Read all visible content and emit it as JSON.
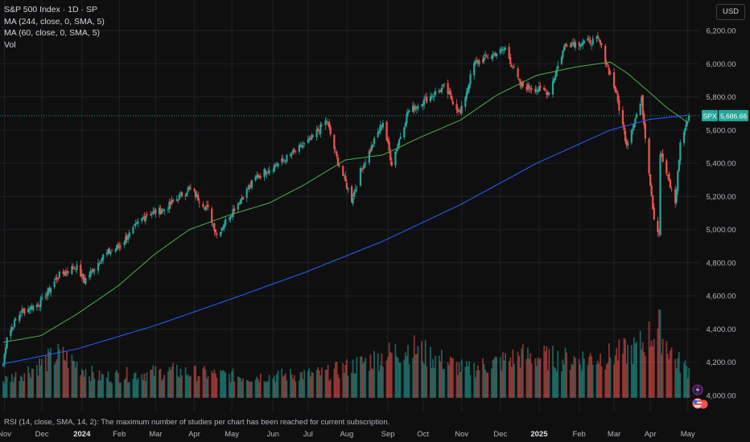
{
  "legend": {
    "title": "S&P 500 Index · 1D · SP",
    "ma244": "MA (244, close, 0, SMA, 5)",
    "ma60": "MA (60, close, 0, SMA, 5)",
    "vol": "Vol"
  },
  "currency": "USD",
  "rsi_note": "RSI (14, close, SMA, 14, 2): The maximum number of studies per chart has been reached for current subscription.",
  "price_tag": {
    "symbol": "SPX",
    "value": "5,686.66",
    "price": 5686.66
  },
  "colors": {
    "background": "#0f0f0f",
    "up": "#26a69a",
    "down": "#ef5350",
    "ma244": "#2962ff",
    "ma60": "#4caf50",
    "grid": "#1f2128",
    "tag": "#26a69a"
  },
  "chart_data": {
    "type": "candlestick",
    "symbol": "S&P 500 Index · 1D · SP",
    "y_ticks": [
      4000,
      4200,
      4400,
      4600,
      4800,
      5000,
      5200,
      5400,
      5600,
      5800,
      6000,
      6200
    ],
    "y_tick_labels": [
      "4,000.00",
      "4,200.00",
      "4,400.00",
      "4,600.00",
      "4,800.00",
      "5,000.00",
      "5,200.00",
      "5,400.00",
      "5,600.00",
      "5,800.00",
      "6,000.00",
      "6,200.00"
    ],
    "ylim": [
      3930,
      6300
    ],
    "x_ticks": [
      {
        "label": "Nov",
        "date": "2023-11-01"
      },
      {
        "label": "Dec",
        "date": "2023-12-01"
      },
      {
        "label": "2024",
        "date": "2024-01-02",
        "year": true
      },
      {
        "label": "Feb",
        "date": "2024-02-01"
      },
      {
        "label": "Mar",
        "date": "2024-03-01"
      },
      {
        "label": "Apr",
        "date": "2024-04-01"
      },
      {
        "label": "May",
        "date": "2024-05-01"
      },
      {
        "label": "Jun",
        "date": "2024-06-03"
      },
      {
        "label": "Jul",
        "date": "2024-07-01"
      },
      {
        "label": "Aug",
        "date": "2024-08-01"
      },
      {
        "label": "Sep",
        "date": "2024-09-03"
      },
      {
        "label": "Oct",
        "date": "2024-10-01"
      },
      {
        "label": "Nov",
        "date": "2024-11-01"
      },
      {
        "label": "Dec",
        "date": "2024-12-02"
      },
      {
        "label": "2025",
        "date": "2025-01-02",
        "year": true
      },
      {
        "label": "Feb",
        "date": "2025-02-03"
      },
      {
        "label": "Mar",
        "date": "2025-03-03"
      },
      {
        "label": "Apr",
        "date": "2025-04-01"
      },
      {
        "label": "May",
        "date": "2025-05-01"
      }
    ],
    "xlim": [
      "2023-10-31",
      "2025-05-07"
    ],
    "close_path": [
      [
        "2023-10-31",
        4190
      ],
      [
        "2023-11-03",
        4360
      ],
      [
        "2023-11-14",
        4500
      ],
      [
        "2023-11-30",
        4560
      ],
      [
        "2023-12-14",
        4720
      ],
      [
        "2023-12-28",
        4780
      ],
      [
        "2024-01-04",
        4690
      ],
      [
        "2024-01-19",
        4840
      ],
      [
        "2024-02-01",
        4900
      ],
      [
        "2024-02-22",
        5090
      ],
      [
        "2024-03-08",
        5120
      ],
      [
        "2024-03-28",
        5250
      ],
      [
        "2024-04-12",
        5120
      ],
      [
        "2024-04-19",
        4970
      ],
      [
        "2024-05-03",
        5130
      ],
      [
        "2024-05-21",
        5320
      ],
      [
        "2024-06-12",
        5420
      ],
      [
        "2024-07-03",
        5540
      ],
      [
        "2024-07-16",
        5660
      ],
      [
        "2024-07-24",
        5430
      ],
      [
        "2024-08-05",
        5180
      ],
      [
        "2024-08-12",
        5350
      ],
      [
        "2024-08-30",
        5650
      ],
      [
        "2024-09-06",
        5400
      ],
      [
        "2024-09-19",
        5710
      ],
      [
        "2024-10-18",
        5860
      ],
      [
        "2024-10-31",
        5700
      ],
      [
        "2024-11-11",
        6000
      ],
      [
        "2024-12-06",
        6090
      ],
      [
        "2024-12-18",
        5870
      ],
      [
        "2025-01-10",
        5830
      ],
      [
        "2025-01-23",
        6120
      ],
      [
        "2025-02-19",
        6140
      ],
      [
        "2025-03-04",
        5840
      ],
      [
        "2025-03-13",
        5520
      ],
      [
        "2025-03-25",
        5780
      ],
      [
        "2025-04-04",
        5070
      ],
      [
        "2025-04-08",
        4980
      ],
      [
        "2025-04-09",
        5460
      ],
      [
        "2025-04-21",
        5160
      ],
      [
        "2025-04-25",
        5520
      ],
      [
        "2025-05-02",
        5686.66
      ]
    ],
    "ma_60_path": [
      [
        "2023-10-31",
        4320
      ],
      [
        "2023-11-30",
        4360
      ],
      [
        "2023-12-29",
        4490
      ],
      [
        "2024-01-31",
        4660
      ],
      [
        "2024-02-29",
        4850
      ],
      [
        "2024-03-28",
        5000
      ],
      [
        "2024-04-30",
        5090
      ],
      [
        "2024-05-31",
        5160
      ],
      [
        "2024-06-28",
        5270
      ],
      [
        "2024-07-31",
        5420
      ],
      [
        "2024-08-30",
        5450
      ],
      [
        "2024-09-30",
        5560
      ],
      [
        "2024-10-31",
        5660
      ],
      [
        "2024-11-29",
        5810
      ],
      [
        "2024-12-31",
        5930
      ],
      [
        "2025-01-31",
        5980
      ],
      [
        "2025-02-28",
        6010
      ],
      [
        "2025-03-14",
        5940
      ],
      [
        "2025-03-31",
        5830
      ],
      [
        "2025-04-15",
        5730
      ],
      [
        "2025-05-02",
        5640
      ]
    ],
    "ma_244_path": [
      [
        "2023-10-31",
        4190
      ],
      [
        "2023-12-29",
        4280
      ],
      [
        "2024-02-29",
        4420
      ],
      [
        "2024-04-30",
        4580
      ],
      [
        "2024-06-28",
        4740
      ],
      [
        "2024-08-30",
        4930
      ],
      [
        "2024-10-31",
        5150
      ],
      [
        "2024-12-31",
        5400
      ],
      [
        "2025-02-28",
        5600
      ],
      [
        "2025-04-01",
        5665
      ],
      [
        "2025-05-02",
        5690
      ]
    ],
    "volume_path": [
      [
        "2023-10-31",
        0.25
      ],
      [
        "2023-11-15",
        0.35
      ],
      [
        "2023-12-15",
        0.62
      ],
      [
        "2024-01-15",
        0.3
      ],
      [
        "2024-03-15",
        0.38
      ],
      [
        "2024-05-15",
        0.3
      ],
      [
        "2024-07-15",
        0.35
      ],
      [
        "2024-08-05",
        0.45
      ],
      [
        "2024-09-20",
        0.72
      ],
      [
        "2024-11-05",
        0.4
      ],
      [
        "2024-12-20",
        0.6
      ],
      [
        "2025-01-27",
        0.55
      ],
      [
        "2025-02-28",
        0.6
      ],
      [
        "2025-03-21",
        0.7
      ],
      [
        "2025-04-04",
        0.95
      ],
      [
        "2025-04-08",
        1.0
      ],
      [
        "2025-04-21",
        0.55
      ],
      [
        "2025-05-02",
        0.4
      ]
    ]
  }
}
